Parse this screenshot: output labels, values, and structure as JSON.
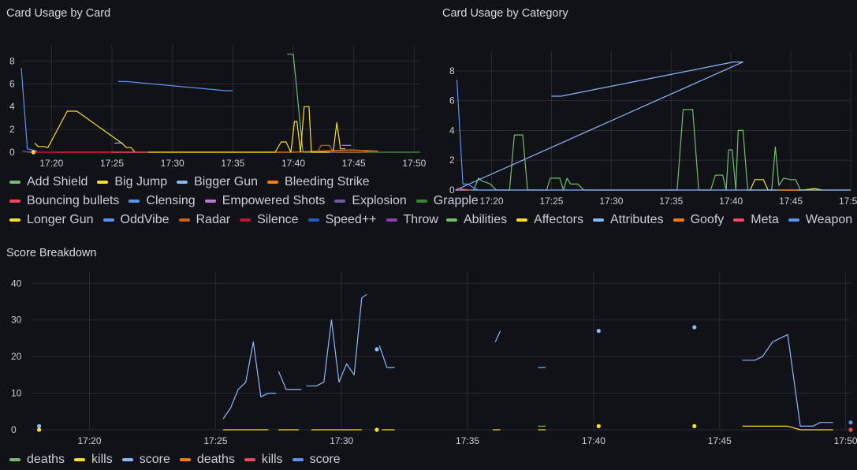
{
  "panels": {
    "by_card": {
      "title": "Card Usage by Card"
    },
    "by_category": {
      "title": "Card Usage by Category"
    },
    "score": {
      "title": "Score Breakdown"
    }
  },
  "chart_data": [
    {
      "id": "by_card",
      "type": "line",
      "title": "Card Usage by Card",
      "x_ticks": [
        "17:20",
        "17:25",
        "17:30",
        "17:35",
        "17:40",
        "17:45",
        "17:50"
      ],
      "x_tick_min": [
        1220,
        1225,
        1230,
        1235,
        1240,
        1245,
        1250
      ],
      "xlim": [
        1217.5,
        1250.5
      ],
      "y_ticks": [
        0,
        2,
        4,
        6,
        8
      ],
      "ylim": [
        0,
        9
      ],
      "legend_rows": [
        [
          "Add Shield",
          "Big Jump",
          "Bigger Gun",
          "Bleeding Strike"
        ],
        [
          "Bouncing bullets",
          "Clensing",
          "Empowered Shots",
          "Explosion",
          "Grapple"
        ],
        [
          "Longer Gun",
          "OddVibe",
          "Radar",
          "Silence",
          "Speed++",
          "Throw"
        ]
      ],
      "series": [
        {
          "name": "Add Shield",
          "color": "#73bf69",
          "points": [
            [
              1239.5,
              8.6
            ],
            [
              1240.0,
              8.6
            ],
            [
              1240.8,
              0
            ],
            [
              1250.5,
              0
            ]
          ]
        },
        {
          "name": "Big Jump",
          "color": "#fade2a",
          "points": [
            [
              1218.6,
              0.8
            ],
            [
              1218.9,
              0.5
            ],
            [
              1219.4,
              0.5
            ],
            [
              1219.7,
              0.4
            ],
            [
              1221.3,
              3.6
            ],
            [
              1222.1,
              3.6
            ],
            [
              1225.8,
              0.8
            ],
            [
              1226.2,
              0.4
            ],
            [
              1226.6,
              0.4
            ],
            [
              1226.9,
              0
            ]
          ]
        },
        {
          "name": "Bigger Gun",
          "color": "#8ab8ff",
          "points": [
            [
              1225.2,
              0.8
            ],
            [
              1225.9,
              0.8
            ]
          ]
        },
        {
          "name": "Bleeding Strike",
          "color": "#ff780a",
          "points": [
            [
              1220.5,
              0
            ],
            [
              1225.0,
              0
            ],
            [
              1240.0,
              0
            ],
            [
              1244.8,
              0.2
            ],
            [
              1247.0,
              0.1
            ]
          ]
        },
        {
          "name": "Bouncing bullets",
          "color": "#f2495c",
          "points": [
            [
              1218.0,
              0
            ],
            [
              1228.0,
              0
            ]
          ]
        },
        {
          "name": "Clensing",
          "color": "#5794f2",
          "points": [
            [
              1225.5,
              6.2
            ],
            [
              1226.2,
              6.2
            ],
            [
              1234.4,
              5.4
            ],
            [
              1235.0,
              5.4
            ]
          ]
        },
        {
          "name": "Empowered Shots",
          "color": "#b877d9",
          "points": [
            [
              1244.0,
              0.6
            ],
            [
              1244.8,
              0.6
            ]
          ]
        },
        {
          "name": "Explosion",
          "color": "#705da0",
          "points": [
            [
              1243.0,
              0
            ],
            [
              1244.0,
              0
            ]
          ]
        },
        {
          "name": "Grapple",
          "color": "#37872d",
          "points": [
            [
              1244.0,
              0
            ],
            [
              1250.5,
              0
            ]
          ]
        },
        {
          "name": "Longer Gun",
          "color": "#fade2a",
          "points": [
            [
              1228.0,
              0
            ],
            [
              1238.5,
              0
            ],
            [
              1239.0,
              0.9
            ],
            [
              1239.4,
              0.9
            ],
            [
              1239.8,
              0
            ],
            [
              1240.1,
              2.7
            ],
            [
              1240.3,
              2.7
            ],
            [
              1240.6,
              0
            ],
            [
              1240.9,
              4.0
            ],
            [
              1241.3,
              4.0
            ],
            [
              1241.5,
              0
            ],
            [
              1243.3,
              0
            ],
            [
              1243.6,
              2.6
            ],
            [
              1243.9,
              0.3
            ],
            [
              1244.3,
              0.3
            ]
          ]
        },
        {
          "name": "OddVibe",
          "color": "#5794f2",
          "points": [
            [
              1217.5,
              7.4
            ],
            [
              1218.0,
              0.3
            ],
            [
              1218.8,
              0.1
            ]
          ]
        },
        {
          "name": "Radar",
          "color": "#ca6116",
          "points": [
            [
              1242.0,
              0
            ],
            [
              1242.3,
              0.6
            ],
            [
              1243.0,
              0.6
            ],
            [
              1243.3,
              0
            ],
            [
              1245.5,
              0
            ],
            [
              1246.5,
              0.1
            ]
          ]
        },
        {
          "name": "Silence",
          "color": "#c4162a",
          "points": [
            [
              1218.2,
              0
            ],
            [
              1225.0,
              0
            ]
          ]
        },
        {
          "name": "Speed++",
          "color": "#1f60c4",
          "points": [
            [
              1217.6,
              0.1
            ],
            [
              1218.6,
              0
            ]
          ]
        },
        {
          "name": "Throw",
          "color": "#8f3bb8",
          "points": [
            [
              1243.0,
              0
            ],
            [
              1243.5,
              0
            ]
          ]
        }
      ],
      "dots": [
        {
          "color": "#ff780a",
          "x": 1218.5,
          "y": 0
        },
        {
          "color": "#fade2a",
          "x": 1218.5,
          "y": 0
        }
      ]
    },
    {
      "id": "by_category",
      "type": "line",
      "title": "Card Usage by Category",
      "x_ticks": [
        "17:20",
        "17:25",
        "17:30",
        "17:35",
        "17:40",
        "17:45",
        "17:50"
      ],
      "x_tick_min": [
        1220,
        1225,
        1230,
        1235,
        1240,
        1245,
        1250
      ],
      "xlim": [
        1217.0,
        1250.0
      ],
      "y_ticks": [
        0,
        2,
        4,
        6,
        8
      ],
      "ylim": [
        0,
        9
      ],
      "legend_rows": [
        [
          "Abilities",
          "Affectors",
          "Attributes",
          "Goofy",
          "Meta",
          "Weapon"
        ]
      ],
      "series": [
        {
          "name": "Abilities",
          "color": "#73bf69",
          "points": [
            [
              1218.5,
              0
            ],
            [
              1218.9,
              0.8
            ],
            [
              1219.2,
              0.6
            ],
            [
              1219.6,
              0.5
            ],
            [
              1219.9,
              0.4
            ],
            [
              1220.4,
              0
            ],
            [
              1221.5,
              0
            ],
            [
              1221.9,
              3.7
            ],
            [
              1222.6,
              3.7
            ],
            [
              1223.0,
              0
            ],
            [
              1224.6,
              0
            ],
            [
              1224.9,
              0.8
            ],
            [
              1225.7,
              0.8
            ],
            [
              1226.0,
              0
            ],
            [
              1226.3,
              0.8
            ],
            [
              1226.6,
              0.4
            ],
            [
              1227.2,
              0.4
            ],
            [
              1227.7,
              0
            ],
            [
              1235.5,
              0
            ],
            [
              1236.0,
              5.4
            ],
            [
              1236.8,
              5.4
            ],
            [
              1237.3,
              0
            ],
            [
              1238.3,
              0
            ],
            [
              1238.7,
              1.0
            ],
            [
              1239.3,
              1.0
            ],
            [
              1239.6,
              0
            ],
            [
              1239.8,
              2.7
            ],
            [
              1240.1,
              2.7
            ],
            [
              1240.4,
              0
            ],
            [
              1240.6,
              4.0
            ],
            [
              1241.0,
              4.0
            ],
            [
              1241.4,
              0
            ],
            [
              1243.4,
              0
            ],
            [
              1243.7,
              2.9
            ],
            [
              1244.0,
              0.3
            ],
            [
              1244.4,
              0.8
            ],
            [
              1245.0,
              0.7
            ],
            [
              1245.4,
              0.7
            ],
            [
              1245.8,
              0
            ],
            [
              1250.0,
              0
            ]
          ]
        },
        {
          "name": "Affectors",
          "color": "#fade2a",
          "points": [
            [
              1241.6,
              0
            ],
            [
              1242.0,
              0.7
            ],
            [
              1242.7,
              0.7
            ],
            [
              1243.1,
              0
            ],
            [
              1246.0,
              0
            ],
            [
              1247.0,
              0.1
            ],
            [
              1247.6,
              0
            ]
          ]
        },
        {
          "name": "Attributes",
          "color": "#8ab8ff",
          "points": [
            [
              1225.0,
              6.3
            ],
            [
              1225.8,
              6.3
            ],
            [
              1240.2,
              8.6
            ],
            [
              1241.0,
              8.6
            ],
            [
              1217.0,
              0
            ],
            [
              1250.0,
              0
            ]
          ]
        },
        {
          "name": "Goofy",
          "color": "#ff780a",
          "points": [
            [
              1244.0,
              0
            ],
            [
              1245.5,
              0
            ]
          ]
        },
        {
          "name": "Meta",
          "color": "#f2495c",
          "points": [
            [
              1217.1,
              0.1
            ],
            [
              1218.3,
              0
            ]
          ]
        },
        {
          "name": "Weapon",
          "color": "#5794f2",
          "points": [
            [
              1217.1,
              7.4
            ],
            [
              1217.6,
              0.4
            ],
            [
              1218.0,
              0.4
            ],
            [
              1218.4,
              0.2
            ],
            [
              1218.9,
              0
            ]
          ]
        }
      ],
      "dots": []
    },
    {
      "id": "score",
      "type": "line",
      "title": "Score Breakdown",
      "x_ticks": [
        "17:20",
        "17:25",
        "17:30",
        "17:35",
        "17:40",
        "17:45",
        "17:50"
      ],
      "x_tick_min": [
        1220,
        1225,
        1230,
        1235,
        1240,
        1245,
        1250
      ],
      "xlim": [
        1217.7,
        1250.2
      ],
      "y_ticks": [
        0,
        10,
        20,
        30,
        40
      ],
      "ylim": [
        0,
        42
      ],
      "legend_rows": [
        [
          "deaths",
          "kills",
          "score",
          "deaths",
          "kills",
          "score"
        ]
      ],
      "legend_colors": [
        "#73bf69",
        "#fade2a",
        "#8ab8ff",
        "#ff780a",
        "#f2495c",
        "#5794f2"
      ],
      "series": [
        {
          "name": "score",
          "color": "#8ab8ff",
          "segments": [
            [
              [
                1225.3,
                3
              ],
              [
                1225.6,
                6
              ],
              [
                1225.9,
                11
              ],
              [
                1226.2,
                13
              ],
              [
                1226.5,
                24
              ],
              [
                1226.8,
                9
              ],
              [
                1227.1,
                10
              ],
              [
                1227.4,
                10
              ]
            ],
            [
              [
                1227.5,
                16
              ],
              [
                1227.8,
                11
              ],
              [
                1228.4,
                11
              ]
            ],
            [
              [
                1228.6,
                12
              ],
              [
                1229.0,
                12
              ],
              [
                1229.3,
                13
              ],
              [
                1229.6,
                30
              ],
              [
                1229.9,
                13
              ],
              [
                1230.2,
                18
              ],
              [
                1230.5,
                15
              ],
              [
                1230.8,
                36
              ],
              [
                1231.0,
                37
              ]
            ],
            [
              [
                1231.5,
                23
              ],
              [
                1231.8,
                17
              ],
              [
                1232.1,
                17
              ]
            ],
            [
              [
                1236.1,
                24
              ],
              [
                1236.3,
                27
              ]
            ],
            [
              [
                1237.8,
                17
              ],
              [
                1238.1,
                17
              ]
            ],
            [
              [
                1245.9,
                19
              ],
              [
                1246.4,
                19
              ],
              [
                1246.7,
                20
              ],
              [
                1247.1,
                24
              ],
              [
                1247.7,
                26
              ],
              [
                1248.2,
                1
              ],
              [
                1248.7,
                1
              ],
              [
                1249.0,
                2
              ],
              [
                1249.5,
                2
              ]
            ]
          ]
        },
        {
          "name": "kills",
          "color": "#fade2a",
          "segments": [
            [
              [
                1225.3,
                0
              ],
              [
                1227.1,
                0
              ]
            ],
            [
              [
                1227.5,
                0
              ],
              [
                1228.3,
                0
              ]
            ],
            [
              [
                1228.8,
                0
              ],
              [
                1230.8,
                0
              ]
            ],
            [
              [
                1231.6,
                0
              ],
              [
                1232.1,
                0
              ]
            ],
            [
              [
                1236.0,
                0
              ],
              [
                1236.3,
                0
              ]
            ],
            [
              [
                1237.8,
                0
              ],
              [
                1238.1,
                0
              ]
            ],
            [
              [
                1245.9,
                1
              ],
              [
                1247.7,
                1
              ],
              [
                1248.2,
                0
              ],
              [
                1249.5,
                0
              ]
            ]
          ]
        },
        {
          "name": "deaths",
          "color": "#73bf69",
          "segments": [
            [
              [
                1237.8,
                1
              ],
              [
                1238.1,
                1
              ]
            ]
          ]
        }
      ],
      "dots": [
        {
          "color": "#8ab8ff",
          "x": 1218.0,
          "y": 1
        },
        {
          "color": "#fade2a",
          "x": 1218.0,
          "y": 0
        },
        {
          "color": "#8ab8ff",
          "x": 1231.4,
          "y": 22
        },
        {
          "color": "#fade2a",
          "x": 1231.4,
          "y": 0
        },
        {
          "color": "#8ab8ff",
          "x": 1240.2,
          "y": 27
        },
        {
          "color": "#fade2a",
          "x": 1240.2,
          "y": 1
        },
        {
          "color": "#8ab8ff",
          "x": 1244.0,
          "y": 28
        },
        {
          "color": "#fade2a",
          "x": 1244.0,
          "y": 1
        },
        {
          "color": "#5794f2",
          "x": 1250.2,
          "y": 2
        },
        {
          "color": "#f2495c",
          "x": 1250.2,
          "y": 0
        }
      ]
    }
  ]
}
